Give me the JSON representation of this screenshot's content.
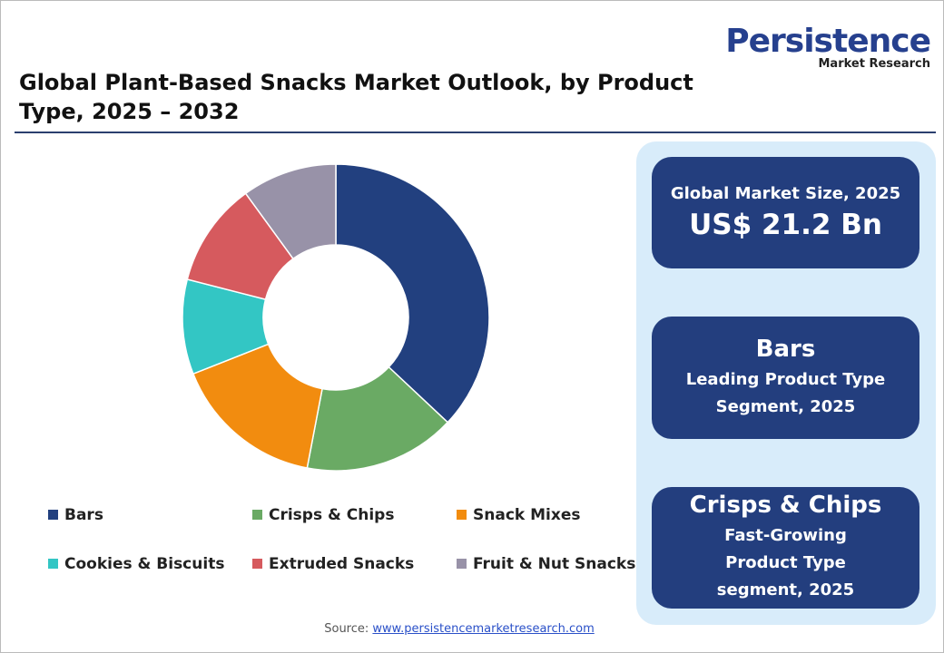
{
  "logo": {
    "name": "Persistence",
    "tagline": "Market Research"
  },
  "chart_data": {
    "type": "donut",
    "title": "Global Plant-Based Snacks Market Outlook, by Product Type, 2025 – 2032",
    "categories": [
      "Bars",
      "Crisps & Chips",
      "Snack Mixes",
      "Cookies & Biscuits",
      "Extruded Snacks",
      "Fruit & Nut Snacks"
    ],
    "values": [
      37,
      16,
      16,
      10,
      11,
      10
    ],
    "colors": [
      "#22407f",
      "#6aaa64",
      "#f28c0f",
      "#33c6c4",
      "#d65a5e",
      "#9892a8"
    ]
  },
  "cards": [
    {
      "heading": "Global Market Size, 2025",
      "value": "US$ 21.2 Bn"
    },
    {
      "heading": "Bars",
      "text": "Leading Product Type Segment, 2025"
    },
    {
      "heading": "Crisps & Chips",
      "text": "Fast-Growing Product Type segment, 2025"
    }
  ],
  "source": {
    "label": "Source:",
    "url": "www.persistencemarketresearch.com"
  }
}
